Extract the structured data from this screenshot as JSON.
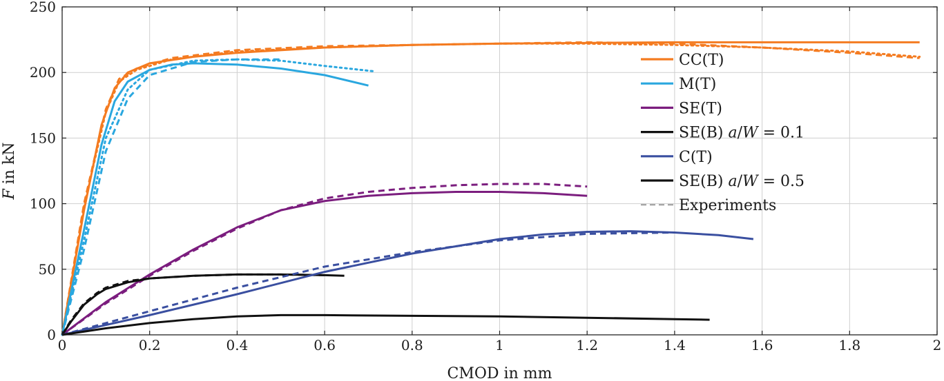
{
  "chart_data": {
    "type": "line",
    "xlabel": "CMOD in mm",
    "ylabel_parts": [
      {
        "text": "F",
        "italic": true
      },
      {
        "text": " in kN",
        "italic": false
      }
    ],
    "xlim": [
      0,
      2
    ],
    "ylim": [
      0,
      250
    ],
    "xticks": [
      0,
      0.2,
      0.4,
      0.6,
      0.8,
      1,
      1.2,
      1.4,
      1.6,
      1.8,
      2
    ],
    "xtick_labels": [
      "0",
      "0.2",
      "0.4",
      "0.6",
      "0.8",
      "1",
      "1.2",
      "1.4",
      "1.6",
      "1.8",
      "2"
    ],
    "yticks": [
      0,
      50,
      100,
      150,
      200,
      250
    ],
    "ytick_labels": [
      "0",
      "50",
      "100",
      "150",
      "200",
      "250"
    ],
    "grid": true,
    "legend_position": "right",
    "legend": [
      {
        "color": "#f47b20",
        "style": "solid",
        "parts": [
          {
            "text": "CC(T)",
            "italic": false
          }
        ]
      },
      {
        "color": "#2aa7df",
        "style": "solid",
        "parts": [
          {
            "text": "M(T)",
            "italic": false
          }
        ]
      },
      {
        "color": "#7b1d7e",
        "style": "solid",
        "parts": [
          {
            "text": "SE(T)",
            "italic": false
          }
        ]
      },
      {
        "color": "#111111",
        "style": "solid",
        "parts": [
          {
            "text": "SE(B) ",
            "italic": false
          },
          {
            "text": "a",
            "italic": true
          },
          {
            "text": "/",
            "italic": false
          },
          {
            "text": "W",
            "italic": true
          },
          {
            "text": " = 0.1",
            "italic": false
          }
        ]
      },
      {
        "color": "#3a4fa0",
        "style": "solid",
        "parts": [
          {
            "text": "C(T)",
            "italic": false
          }
        ]
      },
      {
        "color": "#111111",
        "style": "solid",
        "parts": [
          {
            "text": "SE(B) ",
            "italic": false
          },
          {
            "text": "a",
            "italic": true
          },
          {
            "text": "/",
            "italic": false
          },
          {
            "text": "W",
            "italic": true
          },
          {
            "text": " = 0.5",
            "italic": false
          }
        ]
      },
      {
        "color": "#999999",
        "style": "dashed",
        "parts": [
          {
            "text": "Experiments",
            "italic": false
          }
        ]
      }
    ],
    "series": [
      {
        "group": "CC(T)",
        "kind": "simulation",
        "color": "#f47b20",
        "style": "solid",
        "points": [
          [
            0,
            0
          ],
          [
            0.05,
            95
          ],
          [
            0.09,
            160
          ],
          [
            0.12,
            188
          ],
          [
            0.15,
            200
          ],
          [
            0.2,
            207
          ],
          [
            0.3,
            212
          ],
          [
            0.4,
            215
          ],
          [
            0.6,
            219
          ],
          [
            0.8,
            221
          ],
          [
            1.0,
            222
          ],
          [
            1.4,
            223
          ],
          [
            1.8,
            223
          ],
          [
            1.96,
            223
          ]
        ]
      },
      {
        "group": "CC(T)",
        "kind": "experiment",
        "color": "#f47b20",
        "style": "dashed",
        "points": [
          [
            0,
            0
          ],
          [
            0.05,
            100
          ],
          [
            0.1,
            172
          ],
          [
            0.13,
            195
          ],
          [
            0.17,
            203
          ],
          [
            0.25,
            211
          ],
          [
            0.4,
            217
          ],
          [
            0.6,
            220
          ],
          [
            0.8,
            221
          ],
          [
            1.0,
            222
          ],
          [
            1.2,
            223
          ],
          [
            1.4,
            222
          ],
          [
            1.6,
            219
          ],
          [
            1.8,
            215
          ],
          [
            1.96,
            211
          ]
        ]
      },
      {
        "group": "CC(T)",
        "kind": "experiment",
        "color": "#f47b20",
        "style": "dotted",
        "points": [
          [
            0,
            0
          ],
          [
            0.05,
            98
          ],
          [
            0.1,
            170
          ],
          [
            0.13,
            193
          ],
          [
            0.17,
            202
          ],
          [
            0.25,
            210
          ],
          [
            0.4,
            216
          ],
          [
            0.6,
            219
          ],
          [
            0.8,
            221
          ],
          [
            1.0,
            222
          ],
          [
            1.2,
            222
          ],
          [
            1.4,
            221
          ],
          [
            1.6,
            219
          ],
          [
            1.8,
            216
          ],
          [
            1.96,
            212
          ]
        ]
      },
      {
        "group": "M(T)",
        "kind": "simulation",
        "color": "#2aa7df",
        "style": "solid",
        "points": [
          [
            0,
            0
          ],
          [
            0.05,
            80
          ],
          [
            0.09,
            145
          ],
          [
            0.12,
            178
          ],
          [
            0.15,
            193
          ],
          [
            0.2,
            202
          ],
          [
            0.25,
            206
          ],
          [
            0.3,
            207
          ],
          [
            0.4,
            206
          ],
          [
            0.5,
            203
          ],
          [
            0.6,
            198
          ],
          [
            0.7,
            190
          ]
        ]
      },
      {
        "group": "M(T)",
        "kind": "experiment",
        "color": "#2aa7df",
        "style": "dashed",
        "points": [
          [
            0,
            0
          ],
          [
            0.05,
            65
          ],
          [
            0.1,
            140
          ],
          [
            0.15,
            180
          ],
          [
            0.2,
            198
          ],
          [
            0.3,
            208
          ],
          [
            0.4,
            210
          ],
          [
            0.5,
            210
          ]
        ]
      },
      {
        "group": "M(T)",
        "kind": "experiment",
        "color": "#2aa7df",
        "style": "dotted",
        "points": [
          [
            0,
            0
          ],
          [
            0.05,
            72
          ],
          [
            0.1,
            150
          ],
          [
            0.15,
            187
          ],
          [
            0.2,
            202
          ],
          [
            0.3,
            209
          ],
          [
            0.4,
            210
          ],
          [
            0.5,
            209
          ],
          [
            0.6,
            205
          ],
          [
            0.71,
            201
          ]
        ]
      },
      {
        "group": "SE(T)",
        "kind": "simulation",
        "color": "#7b1d7e",
        "style": "solid",
        "points": [
          [
            0,
            0
          ],
          [
            0.1,
            25
          ],
          [
            0.2,
            46
          ],
          [
            0.3,
            65
          ],
          [
            0.4,
            82
          ],
          [
            0.5,
            95
          ],
          [
            0.6,
            102
          ],
          [
            0.7,
            106
          ],
          [
            0.8,
            108
          ],
          [
            0.9,
            109
          ],
          [
            1.0,
            109
          ],
          [
            1.1,
            108
          ],
          [
            1.2,
            106
          ]
        ]
      },
      {
        "group": "SE(T)",
        "kind": "experiment",
        "color": "#7b1d7e",
        "style": "dashed",
        "points": [
          [
            0,
            0
          ],
          [
            0.1,
            24
          ],
          [
            0.2,
            45
          ],
          [
            0.3,
            64
          ],
          [
            0.4,
            81
          ],
          [
            0.5,
            95
          ],
          [
            0.6,
            104
          ],
          [
            0.7,
            109
          ],
          [
            0.8,
            112
          ],
          [
            0.9,
            114
          ],
          [
            1.0,
            115
          ],
          [
            1.1,
            115
          ],
          [
            1.2,
            113
          ]
        ]
      },
      {
        "group": "SE(B) a/W = 0.1",
        "kind": "simulation",
        "color": "#111111",
        "style": "solid",
        "points": [
          [
            0,
            0
          ],
          [
            0.02,
            10
          ],
          [
            0.05,
            23
          ],
          [
            0.08,
            31
          ],
          [
            0.1,
            35
          ],
          [
            0.15,
            40
          ],
          [
            0.2,
            43
          ],
          [
            0.3,
            45
          ],
          [
            0.4,
            46
          ],
          [
            0.5,
            46
          ],
          [
            0.6,
            45.5
          ],
          [
            0.645,
            45
          ]
        ]
      },
      {
        "group": "SE(B) a/W = 0.1",
        "kind": "experiment",
        "color": "#111111",
        "style": "dashed",
        "points": [
          [
            0,
            0
          ],
          [
            0.02,
            11
          ],
          [
            0.05,
            24
          ],
          [
            0.08,
            32
          ],
          [
            0.1,
            36
          ],
          [
            0.15,
            41
          ],
          [
            0.2,
            43
          ],
          [
            0.3,
            45
          ],
          [
            0.4,
            46
          ],
          [
            0.5,
            46
          ],
          [
            0.6,
            45.5
          ]
        ]
      },
      {
        "group": "C(T)",
        "kind": "simulation",
        "color": "#3a4fa0",
        "style": "solid",
        "points": [
          [
            0,
            0
          ],
          [
            0.2,
            15
          ],
          [
            0.4,
            31
          ],
          [
            0.6,
            48
          ],
          [
            0.8,
            62
          ],
          [
            1.0,
            73
          ],
          [
            1.1,
            76.5
          ],
          [
            1.2,
            78.5
          ],
          [
            1.3,
            79
          ],
          [
            1.4,
            78
          ],
          [
            1.5,
            76
          ],
          [
            1.58,
            73
          ]
        ]
      },
      {
        "group": "C(T)",
        "kind": "experiment",
        "color": "#3a4fa0",
        "style": "dashed",
        "points": [
          [
            0,
            0
          ],
          [
            0.1,
            9
          ],
          [
            0.2,
            18
          ],
          [
            0.4,
            36
          ],
          [
            0.6,
            52
          ],
          [
            0.8,
            63
          ],
          [
            1.0,
            72
          ],
          [
            1.2,
            77
          ],
          [
            1.4,
            78
          ]
        ]
      },
      {
        "group": "SE(B) a/W = 0.5",
        "kind": "simulation",
        "color": "#111111",
        "style": "solid",
        "points": [
          [
            0,
            0
          ],
          [
            0.1,
            5
          ],
          [
            0.2,
            9
          ],
          [
            0.3,
            12
          ],
          [
            0.4,
            14
          ],
          [
            0.5,
            15
          ],
          [
            0.6,
            15
          ],
          [
            0.8,
            14.5
          ],
          [
            1.0,
            14
          ],
          [
            1.2,
            13
          ],
          [
            1.4,
            12
          ],
          [
            1.48,
            11.5
          ]
        ]
      }
    ]
  }
}
